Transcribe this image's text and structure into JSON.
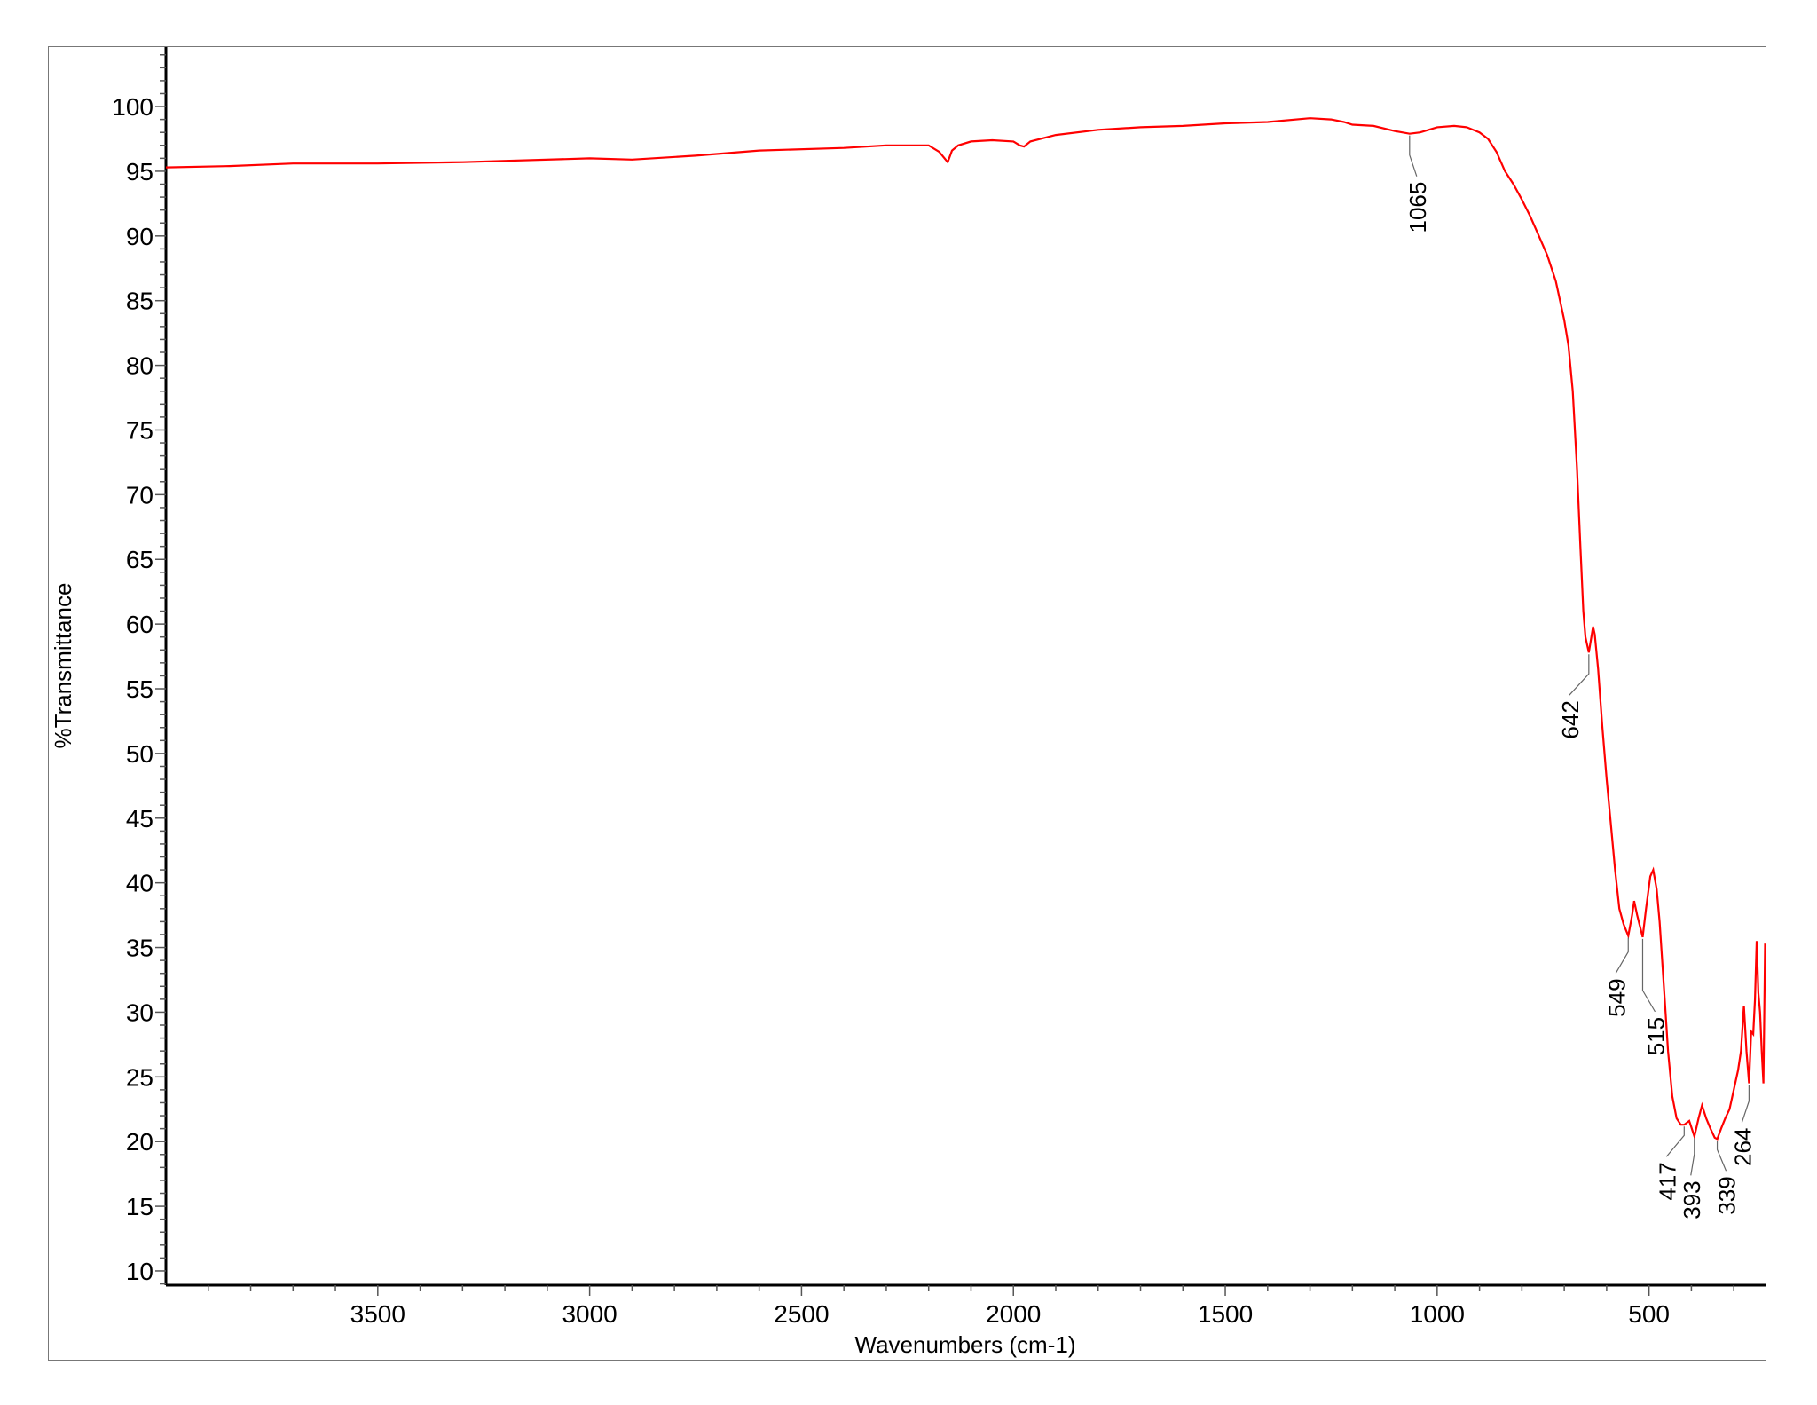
{
  "chart_data": {
    "type": "line",
    "title": "",
    "xlabel": "Wavenumbers (cm-1)",
    "ylabel": "%Transmittance",
    "xlim": [
      4000,
      225
    ],
    "ylim": [
      8.9,
      104.6
    ],
    "x_reversed": true,
    "grid": false,
    "xticks": [
      3500,
      3000,
      2500,
      2000,
      1500,
      1000,
      500
    ],
    "yticks": [
      10,
      15,
      20,
      25,
      30,
      35,
      40,
      45,
      50,
      55,
      60,
      65,
      70,
      75,
      80,
      85,
      90,
      95,
      100
    ],
    "series": [
      {
        "color": "#ff0000",
        "points": [
          [
            4000,
            95.3
          ],
          [
            3850,
            95.4
          ],
          [
            3700,
            95.6
          ],
          [
            3500,
            95.6
          ],
          [
            3300,
            95.7
          ],
          [
            3000,
            96.0
          ],
          [
            2900,
            95.9
          ],
          [
            2750,
            96.2
          ],
          [
            2600,
            96.6
          ],
          [
            2400,
            96.8
          ],
          [
            2300,
            97.0
          ],
          [
            2200,
            97.0
          ],
          [
            2175,
            96.5
          ],
          [
            2160,
            95.9
          ],
          [
            2155,
            95.7
          ],
          [
            2145,
            96.6
          ],
          [
            2130,
            97.0
          ],
          [
            2100,
            97.3
          ],
          [
            2050,
            97.4
          ],
          [
            2000,
            97.3
          ],
          [
            1985,
            97.0
          ],
          [
            1975,
            96.9
          ],
          [
            1960,
            97.3
          ],
          [
            1900,
            97.8
          ],
          [
            1800,
            98.2
          ],
          [
            1700,
            98.4
          ],
          [
            1600,
            98.5
          ],
          [
            1500,
            98.7
          ],
          [
            1400,
            98.8
          ],
          [
            1300,
            99.1
          ],
          [
            1250,
            99.0
          ],
          [
            1220,
            98.8
          ],
          [
            1200,
            98.6
          ],
          [
            1150,
            98.5
          ],
          [
            1100,
            98.1
          ],
          [
            1065,
            97.9
          ],
          [
            1040,
            98.0
          ],
          [
            1000,
            98.4
          ],
          [
            960,
            98.5
          ],
          [
            930,
            98.4
          ],
          [
            900,
            98.0
          ],
          [
            880,
            97.5
          ],
          [
            860,
            96.5
          ],
          [
            840,
            95.0
          ],
          [
            820,
            94.0
          ],
          [
            800,
            92.8
          ],
          [
            780,
            91.5
          ],
          [
            760,
            90.0
          ],
          [
            740,
            88.5
          ],
          [
            720,
            86.5
          ],
          [
            700,
            83.5
          ],
          [
            690,
            81.5
          ],
          [
            680,
            78.0
          ],
          [
            670,
            72.0
          ],
          [
            662,
            66.0
          ],
          [
            655,
            61.0
          ],
          [
            650,
            59.0
          ],
          [
            642,
            57.8
          ],
          [
            636,
            59.0
          ],
          [
            632,
            59.8
          ],
          [
            628,
            59.2
          ],
          [
            620,
            56.5
          ],
          [
            610,
            52.0
          ],
          [
            600,
            48.0
          ],
          [
            590,
            44.5
          ],
          [
            580,
            41.0
          ],
          [
            570,
            38.0
          ],
          [
            560,
            36.8
          ],
          [
            549,
            35.9
          ],
          [
            540,
            37.5
          ],
          [
            535,
            38.6
          ],
          [
            528,
            37.5
          ],
          [
            515,
            35.8
          ],
          [
            507,
            38.0
          ],
          [
            497,
            40.5
          ],
          [
            490,
            41.0
          ],
          [
            482,
            39.5
          ],
          [
            475,
            37.0
          ],
          [
            465,
            32.0
          ],
          [
            455,
            27.0
          ],
          [
            445,
            23.5
          ],
          [
            435,
            21.8
          ],
          [
            425,
            21.3
          ],
          [
            417,
            21.3
          ],
          [
            405,
            21.6
          ],
          [
            393,
            20.4
          ],
          [
            383,
            21.8
          ],
          [
            375,
            22.8
          ],
          [
            365,
            21.8
          ],
          [
            355,
            21.0
          ],
          [
            345,
            20.3
          ],
          [
            339,
            20.2
          ],
          [
            330,
            21.0
          ],
          [
            320,
            21.8
          ],
          [
            310,
            22.5
          ],
          [
            300,
            24.0
          ],
          [
            290,
            25.5
          ],
          [
            283,
            27.0
          ],
          [
            276,
            30.5
          ],
          [
            270,
            27.0
          ],
          [
            264,
            24.5
          ],
          [
            259,
            28.5
          ],
          [
            254,
            28.3
          ],
          [
            250,
            31.0
          ],
          [
            246,
            35.5
          ],
          [
            242,
            31.5
          ],
          [
            238,
            30.0
          ],
          [
            234,
            27.0
          ],
          [
            230,
            24.5
          ],
          [
            228,
            30.0
          ],
          [
            226,
            35.3
          ]
        ]
      }
    ],
    "annotations": [
      {
        "x": 1065,
        "y": 97.9,
        "label": "1065"
      },
      {
        "x": 642,
        "y": 57.8,
        "label": "642"
      },
      {
        "x": 549,
        "y": 35.9,
        "label": "549"
      },
      {
        "x": 515,
        "y": 35.8,
        "label": "515"
      },
      {
        "x": 417,
        "y": 21.3,
        "label": "417"
      },
      {
        "x": 393,
        "y": 20.4,
        "label": "393"
      },
      {
        "x": 339,
        "y": 20.2,
        "label": "339"
      },
      {
        "x": 264,
        "y": 24.5,
        "label": "264"
      }
    ]
  }
}
